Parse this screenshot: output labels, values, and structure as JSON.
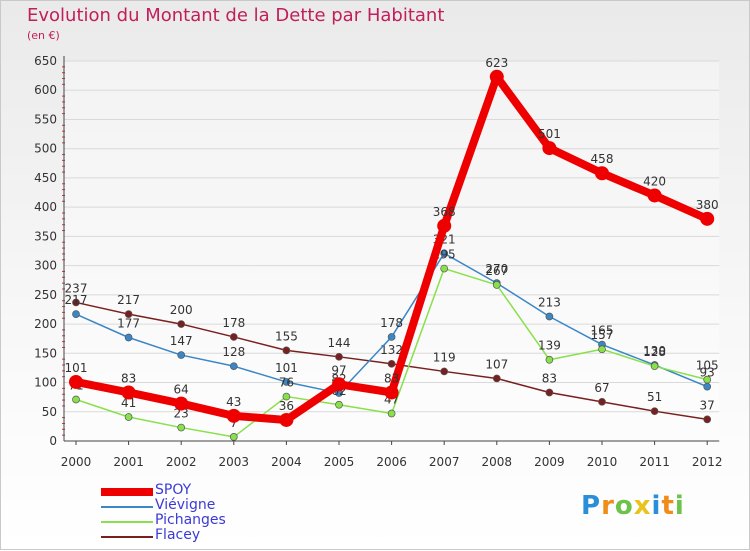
{
  "chart_data": {
    "type": "line",
    "title": "Evolution du Montant de la Dette par Habitant",
    "subtitle": "(en €)",
    "categories": [
      "2000",
      "2001",
      "2002",
      "2003",
      "2004",
      "2005",
      "2006",
      "2007",
      "2008",
      "2009",
      "2010",
      "2011",
      "2012"
    ],
    "ylim": [
      0,
      650
    ],
    "yticks": [
      0,
      50,
      100,
      150,
      200,
      250,
      300,
      350,
      400,
      450,
      500,
      550,
      600,
      650
    ],
    "grid": true,
    "legend_position": "bottom-left",
    "series": [
      {
        "name": "Flacey",
        "color": "#7a1f1f",
        "values": [
          237,
          217,
          200,
          178,
          155,
          144,
          132,
          119,
          107,
          83,
          67,
          51,
          37
        ],
        "labels": [
          "237",
          "217",
          "200",
          "178",
          "155",
          "144",
          "132",
          "119",
          "107",
          "83",
          "67",
          "51",
          "37"
        ]
      },
      {
        "name": "Viévigne",
        "color": "#3a86c6",
        "values": [
          217,
          177,
          147,
          128,
          101,
          82,
          178,
          321,
          270,
          213,
          165,
          130,
          93
        ],
        "labels": [
          "217",
          "177",
          "147",
          "128",
          "101",
          "82",
          "178",
          "321",
          "270",
          "213",
          "165",
          "130",
          "93"
        ]
      },
      {
        "name": "Pichanges",
        "color": "#88e04a",
        "values": [
          71,
          41,
          23,
          7,
          76,
          62,
          47,
          295,
          267,
          139,
          157,
          128,
          105
        ],
        "labels": [
          "71",
          "41",
          "23",
          "7",
          "76",
          "62",
          "47",
          "295",
          "267",
          "139",
          "157",
          "128",
          "105"
        ]
      },
      {
        "name": "SPOY",
        "color": "#ee0000",
        "values": [
          101,
          83,
          64,
          43,
          36,
          97,
          83,
          368,
          623,
          501,
          458,
          420,
          380
        ],
        "labels": [
          "101",
          "83",
          "64",
          "43",
          "36",
          "97",
          "83",
          "368",
          "623",
          "501",
          "458",
          "420",
          "380"
        ]
      }
    ],
    "legend": [
      {
        "name": "SPOY",
        "color": "#ee0000"
      },
      {
        "name": "Viévigne",
        "color": "#3a86c6"
      },
      {
        "name": "Pichanges",
        "color": "#88e04a"
      },
      {
        "name": "Flacey",
        "color": "#7a1f1f"
      }
    ]
  },
  "logo": {
    "letters": [
      {
        "ch": "P",
        "color": "#2a8fd8"
      },
      {
        "ch": "r",
        "color": "#f08c1a"
      },
      {
        "ch": "o",
        "color": "#6cc24a"
      },
      {
        "ch": "x",
        "color": "#e8c51a"
      },
      {
        "ch": "i",
        "color": "#2a8fd8"
      },
      {
        "ch": "t",
        "color": "#f08c1a"
      },
      {
        "ch": "i",
        "color": "#6cc24a"
      }
    ]
  }
}
